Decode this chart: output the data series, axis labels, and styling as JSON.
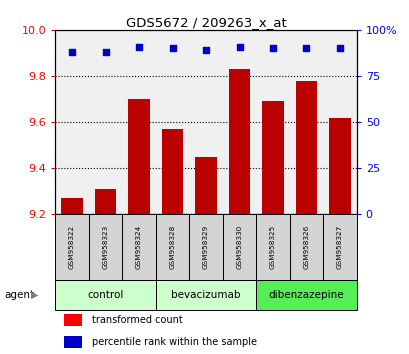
{
  "title": "GDS5672 / 209263_x_at",
  "samples": [
    "GSM958322",
    "GSM958323",
    "GSM958324",
    "GSM958328",
    "GSM958329",
    "GSM958330",
    "GSM958325",
    "GSM958326",
    "GSM958327"
  ],
  "bar_values": [
    9.27,
    9.31,
    9.7,
    9.57,
    9.45,
    9.83,
    9.69,
    9.78,
    9.62
  ],
  "percentile_values": [
    88,
    88,
    91,
    90,
    89,
    91,
    90,
    90,
    90
  ],
  "bar_color": "#bb0000",
  "dot_color": "#0000cc",
  "ylim_left": [
    9.2,
    10.0
  ],
  "ylim_right": [
    0,
    100
  ],
  "yticks_left": [
    9.2,
    9.4,
    9.6,
    9.8,
    10.0
  ],
  "yticks_right": [
    0,
    25,
    50,
    75,
    100
  ],
  "groups": [
    {
      "label": "control",
      "cols": [
        0,
        1,
        2
      ],
      "color": "#ccffcc"
    },
    {
      "label": "bevacizumab",
      "cols": [
        3,
        4,
        5
      ],
      "color": "#ccffcc"
    },
    {
      "label": "dibenzazepine",
      "cols": [
        6,
        7,
        8
      ],
      "color": "#55ee55"
    }
  ],
  "sample_cell_color": "#d4d4d4",
  "legend_bar_label": "transformed count",
  "legend_dot_label": "percentile rank within the sample",
  "plot_bg_color": "#f0f0f0",
  "agent_arrow": "▶"
}
